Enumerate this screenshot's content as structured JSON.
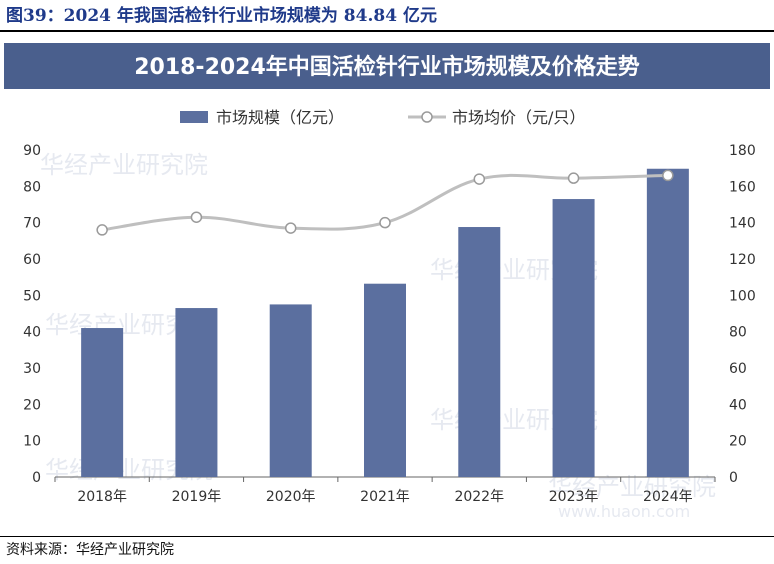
{
  "figure": {
    "caption": "图39：2024 年我国活检针行业市场规模为 84.84 亿元",
    "source": "资料来源：华经产业研究院",
    "watermark": "华经产业研究院",
    "watermark_url": "www.huaon.com"
  },
  "colors": {
    "banner": "#4a5f8d",
    "bar": "#5b6f9f",
    "line": "#bfbfbf",
    "marker_fill": "#ffffff",
    "marker_stroke": "#9a9a9a",
    "axis_text": "#333333",
    "caption": "#1f3a8a"
  },
  "chart_data": {
    "type": "bar",
    "title": "2018-2024年中国活检针行业市场规模及价格走势",
    "categories": [
      "2018年",
      "2019年",
      "2020年",
      "2021年",
      "2022年",
      "2023年",
      "2024年"
    ],
    "series": [
      {
        "name": "市场规模（亿元）",
        "type": "bar",
        "axis": "left",
        "values": [
          41,
          46.5,
          47.5,
          53.2,
          68.8,
          76.5,
          84.84
        ]
      },
      {
        "name": "市场均价（元/只）",
        "type": "line",
        "axis": "right",
        "values": [
          136,
          143,
          137,
          140,
          164,
          164.5,
          166
        ]
      }
    ],
    "y_left": {
      "min": 0,
      "max": 90,
      "ticks": [
        0,
        10,
        20,
        30,
        40,
        50,
        60,
        70,
        80,
        90
      ]
    },
    "y_right": {
      "min": 0,
      "max": 180,
      "ticks": [
        0,
        20,
        40,
        60,
        80,
        100,
        120,
        140,
        160,
        180
      ]
    },
    "legend_position": "top-center",
    "grid": false
  }
}
